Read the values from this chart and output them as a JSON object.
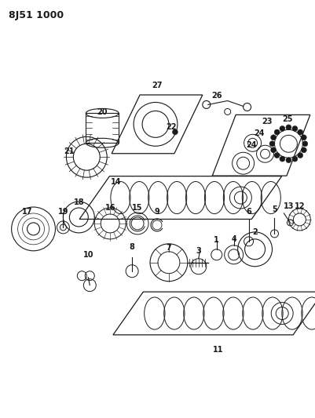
{
  "title": "8J51 1000",
  "bg": "#ffffff",
  "lc": "#1a1a1a",
  "fig_w": 4.02,
  "fig_h": 5.33,
  "dpi": 100
}
